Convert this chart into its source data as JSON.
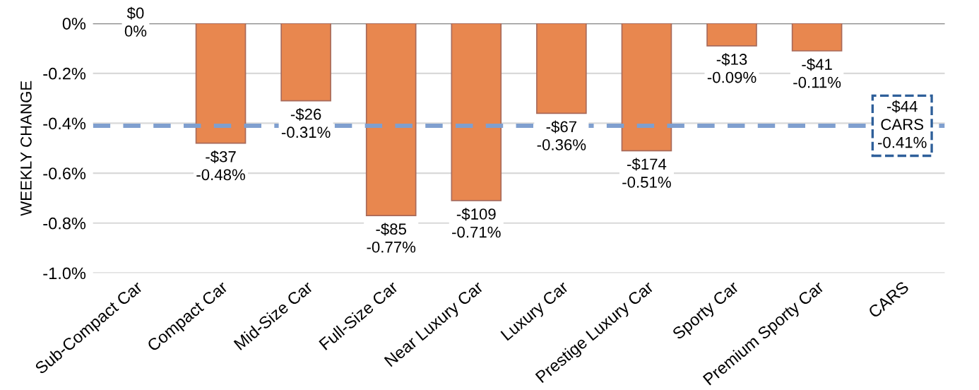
{
  "chart_data": {
    "type": "bar",
    "ylabel": "WEEKLY CHANGE",
    "categories": [
      "Sub-Compact Car",
      "Compact Car",
      "Mid-Size Car",
      "Full-Size Car",
      "Near Luxury Car",
      "Luxury Car",
      "Prestige Luxury Car",
      "Sporty Car",
      "Premium Sporty Car",
      "CARS"
    ],
    "values": [
      0,
      -0.48,
      -0.31,
      -0.77,
      -0.71,
      -0.36,
      -0.51,
      -0.09,
      -0.11,
      null
    ],
    "value_labels": [
      "$0\n0%",
      "-$37\n-0.48%",
      "-$26\n-0.31%",
      "-$85\n-0.77%",
      "-$109\n-0.71%",
      "-$67\n-0.36%",
      "-$174\n-0.51%",
      "-$13\n-0.09%",
      "-$41\n-0.11%",
      null
    ],
    "color": "#e8874f",
    "ylim": [
      -1.0,
      0
    ],
    "yticks": [
      {
        "value": 0,
        "label": "0%"
      },
      {
        "value": -0.2,
        "label": "-0.2%"
      },
      {
        "value": -0.4,
        "label": "-0.4%"
      },
      {
        "value": -0.6,
        "label": "-0.6%"
      },
      {
        "value": -0.8,
        "label": "-0.8%"
      },
      {
        "value": -1.0,
        "label": "-1.0%"
      }
    ],
    "grid": "y",
    "ref_lines": [
      {
        "axis": "y",
        "value": -0.41,
        "label": "-$44\nCARS\n-0.41%",
        "color": "#7f9fcf",
        "line_style": "dashed"
      }
    ]
  }
}
